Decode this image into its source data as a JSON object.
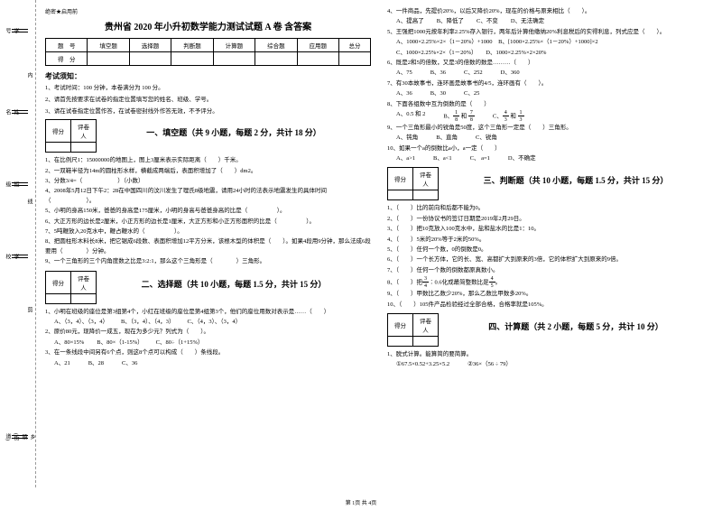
{
  "binding": {
    "labels": [
      "学号",
      "姓名",
      "班级",
      "学校",
      "乡镇(街道)"
    ],
    "side": [
      "内",
      "线",
      "剪",
      "题"
    ],
    "topchar": "题",
    "midchar": "不",
    "lowchar": "签"
  },
  "secret": "绝密★启用前",
  "title": "贵州省 2020 年小升初数学能力测试试题 A 卷 含答案",
  "scoreHeaders": [
    "题　号",
    "填空题",
    "选择题",
    "判断题",
    "计算题",
    "综合题",
    "应用题",
    "总分"
  ],
  "scoreRow2": "得　分",
  "noticeTitle": "考试须知：",
  "notices": [
    "1、考试时间：100 分钟，本卷满分为 100 分。",
    "2、请首先按要求在试卷的指定位置填写您的姓名、班级、学号。",
    "3、请在试卷指定位置作答，在试卷密封线外作答无效，不予评分。"
  ],
  "sectionTableHeaders": [
    "得分",
    "评卷人"
  ],
  "sections": {
    "s1": "一、填空题（共 9 小题，每题 2 分，共计 18 分）",
    "s2": "二、选择题（共 10 小题，每题 1.5 分，共计 15 分）",
    "s3": "三、判断题（共 10 小题，每题 1.5 分，共计 15 分）",
    "s4": "四、计算题（共 2 小题，每题 5 分，共计 10 分）"
  },
  "fill": [
    "1、在比例尺1：15000000的地图上，图上3厘米表示实际距离（　　）千米。",
    "2、一双鞋半径为14m的圆柱形水样，横截成两端后，表面积增加了（　　）dm2。",
    "3、分数3/4=（　　　　　　）（小数）",
    "4、2008年5月12日下午2：28在中国四川的汶川发生了理氏8级地震，请用24小时的法表示地震发生的具体时间（　　　　　　）。",
    "5、小明的身高150米，爸爸的身高是175厘米，小明的身高与爸爸身高的比是（　　　　　）。",
    "6、大正方形的边长是2厘米，小正方形的边长是1厘米，大正方形和小正方形面积的比是（　　　　　）。",
    "7、5吨鞭放入20克水中，鞭占鞭水的（　　　　　）。",
    "8、把圆柱形木料长8米，把它锯成6段数、表面积增加12平方分米，该根木型的体积是（　　）。如果4段用9分钟，那么法成6段要用（　　　　）分钟。",
    "9、一个三角形的三个内角度数之比是3:2:1，那么这个三角形是（　　　　）三角形。"
  ],
  "choice": [
    {
      "stem": "1、小明在班级的座位是第3组第4个，小红在班级的座位是第4组第3个，他们的座位用数对表示是……（　　）",
      "opts": [
        "A、（3，4）、（3，4）",
        "B、（3，4）、（4，3）",
        "C、（4，3）、（3，4）"
      ]
    },
    {
      "stem": "2、原价80元，现降价一成五，现在为多少元？列式为（　　）。",
      "opts": [
        "A、80×15%",
        "B、80×（1-15%）",
        "C、80÷（1+15%）"
      ]
    },
    {
      "stem": "3、在一条线段中间另有6个点，则这8个点可以构成（　　）条线段。",
      "opts": [
        "A、21",
        "B、28",
        "C、36"
      ]
    },
    {
      "stem": "4、一件商品，先提价20%，以后又降价20%，现在的价格与原来相比（　　）。",
      "opts": [
        "A、提高了",
        "B、降低了",
        "C、不变",
        "D、无法确定"
      ]
    },
    {
      "stem": "5、王强把1000元按年利率2.25%存入银行，两年后计算他缴纳20%利息税后的实得利息，列式应是（　　）。",
      "opts": [
        "A、1000×2.25%×2×（1－20%）+1000",
        "B、[1000×2.25%×（1－20%）+1000]×2",
        "C、1000×2.25%×2×（1－20%）",
        "D、1000×2.25%×2×20%"
      ]
    },
    {
      "stem": "6、既是2和5的倍数，又是3的倍数的数是………（　　）",
      "opts": [
        "A、75",
        "B、36",
        "C、252",
        "D、360"
      ]
    },
    {
      "stem": "7、有30本故事书，连环画是故事书的4/5，连环画有（　　）。",
      "opts": [
        "A、36",
        "B、30",
        "C、25"
      ]
    },
    {
      "stem": "8、下面各组数中互为倒数的是（　　）",
      "opts": []
    },
    {
      "stem": "9、一个三角形最小的锐角是50度，这个三角形一定是（　　）三角形。",
      "opts": [
        "A、钝角",
        "B、直角",
        "C、锐角"
      ]
    },
    {
      "stem": "10、如果一个a的倒数比a小，a一定（　　）",
      "opts": [
        "A、a>1",
        "B、a<1",
        "C、 a=1",
        "D、不确定"
      ]
    }
  ],
  "choice8opts": {
    "a1": "A、0.5 和 2",
    "b1": "B、",
    "b2": " 和 ",
    "c1": "C、",
    "c2": " 和 "
  },
  "judge": [
    "1、（　　）比的前向和后都不能为0。",
    "2、（　　）一份协议书的签订日期是2019年2月29日。",
    "3、（　　）把10克放入100克水中，盐和盐水的比是1：10。",
    "4、（　　）5米的20%等于2米的50%。",
    "5、（　　）任何一个数，0的倒数是0。",
    "6、（　　）一个长方体，它的长、宽、高都扩大到原来的3倍，它的体积扩大到原来的9倍。",
    "7、（　　）任何一个数的倒数都原真数小。"
  ],
  "judge8": {
    "pre": "8、（　　）把",
    "post": "∶0.6化成最简整数比是"
  },
  "judge9": "9、（　　）甲数比乙数少20%，那么乙数比甲数多20%。",
  "judge10": "10、（　　）105件产品检验经过全部合格，合格率就是105%。",
  "calc": {
    "stem": "1、脱式计算。能算简的要简算。",
    "items": [
      "①67.5×0.52+3.25×5.2",
      "②36×（56 ÷ 79）"
    ]
  },
  "footer": "第 1页 共 4页"
}
